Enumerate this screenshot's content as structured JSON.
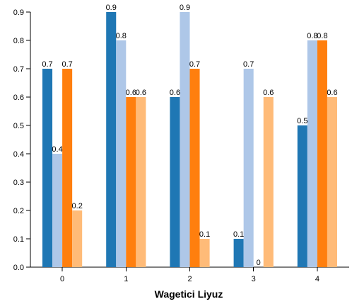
{
  "chart_data": {
    "type": "bar",
    "title": "",
    "xlabel": "Wagetici Liyuz",
    "ylabel": "",
    "categories": [
      "0",
      "1",
      "2",
      "3",
      "4"
    ],
    "y_ticks": [
      "0.0",
      "0.1",
      "0.2",
      "0.3",
      "0.4",
      "0.5",
      "0.6",
      "0.7",
      "0.8",
      "0.9"
    ],
    "ylim": [
      0,
      0.9
    ],
    "grid": false,
    "series": [
      {
        "values": [
          0.7,
          0.9,
          0.6,
          0.1,
          0.5
        ],
        "labels": [
          "0.7",
          "0.9",
          "0.6",
          "0.1",
          "0.5"
        ],
        "color": "#1f77b4"
      },
      {
        "values": [
          0.4,
          0.8,
          0.9,
          0.7,
          0.8
        ],
        "labels": [
          "0.4",
          "0.8",
          "0.9",
          "0.7",
          "0.8"
        ],
        "color": "#aec7e8"
      },
      {
        "values": [
          0.7,
          0.6,
          0.7,
          0.0,
          0.8
        ],
        "labels": [
          "0.7",
          "0.6",
          "0.7",
          "0",
          "0.8"
        ],
        "color": "#ff7f0e"
      },
      {
        "values": [
          0.2,
          0.6,
          0.1,
          0.6,
          0.6
        ],
        "labels": [
          "0.2",
          "0.6",
          "0.1",
          "0.6",
          "0.6"
        ],
        "color": "#ffbb78"
      }
    ]
  }
}
